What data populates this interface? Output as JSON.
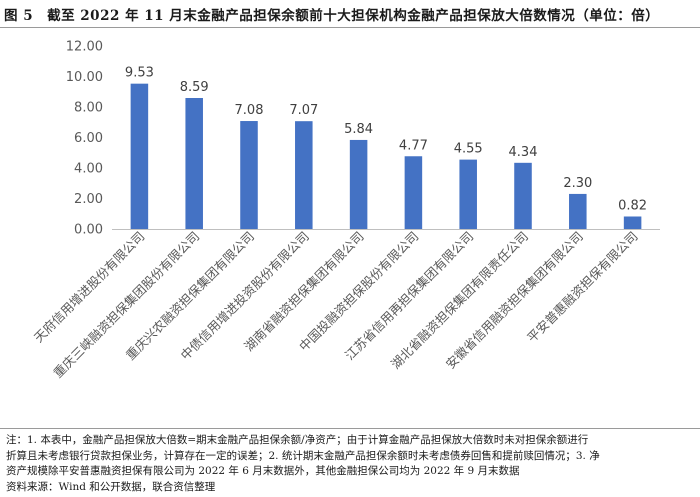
{
  "figure": {
    "number": "图 5",
    "title": "截至 2022 年 11 月末金融产品担保余额前十大担保机构金融产品担保放大倍数情况（单位：倍）"
  },
  "chart_data": {
    "type": "bar",
    "title": "截至 2022 年 11 月末金融产品担保余额前十大担保机构金融产品担保放大倍数情况",
    "unit": "倍",
    "categories": [
      "天府信用增进股份有限公司",
      "重庆三峡融资担保集团股份有限公司",
      "重庆兴农融资担保集团有限公司",
      "中债信用增进投资股份有限公司",
      "湖南省融资担保集团有限公司",
      "中国投融资担保股份有限公司",
      "江苏省信用再担保集团有限公司",
      "湖北省融资担保集团有限责任公司",
      "安徽省信用融资担保集团有限公司",
      "平安普惠融资担保有限公司"
    ],
    "values": [
      9.53,
      8.59,
      7.08,
      7.07,
      5.84,
      4.77,
      4.55,
      4.34,
      2.3,
      0.82
    ],
    "value_labels": [
      "9.53",
      "8.59",
      "7.08",
      "7.07",
      "5.84",
      "4.77",
      "4.55",
      "4.34",
      "2.30",
      "0.82"
    ],
    "yticks": [
      "0.00",
      "2.00",
      "4.00",
      "6.00",
      "8.00",
      "10.00",
      "12.00"
    ],
    "ylim": [
      0,
      12
    ],
    "grid": false,
    "bar_color": "#4472c4"
  },
  "notes": {
    "line1": "注：1. 本表中，金融产品担保放大倍数=期末金融产品担保余额/净资产；由于计算金融产品担保放大倍数时未对担保余额进行",
    "line2": "折算且未考虑银行贷款担保业务，计算存在一定的误差；2. 统计期末金融产品担保余额时未考虑债券回售和提前赎回情况；3. 净",
    "line3": "资产规模除平安普惠融资担保有限公司为 2022 年 6 月末数据外，其他金融担保公司均为 2022 年 9 月末数据",
    "source": "资料来源：Wind 和公开数据，联合资信整理"
  }
}
